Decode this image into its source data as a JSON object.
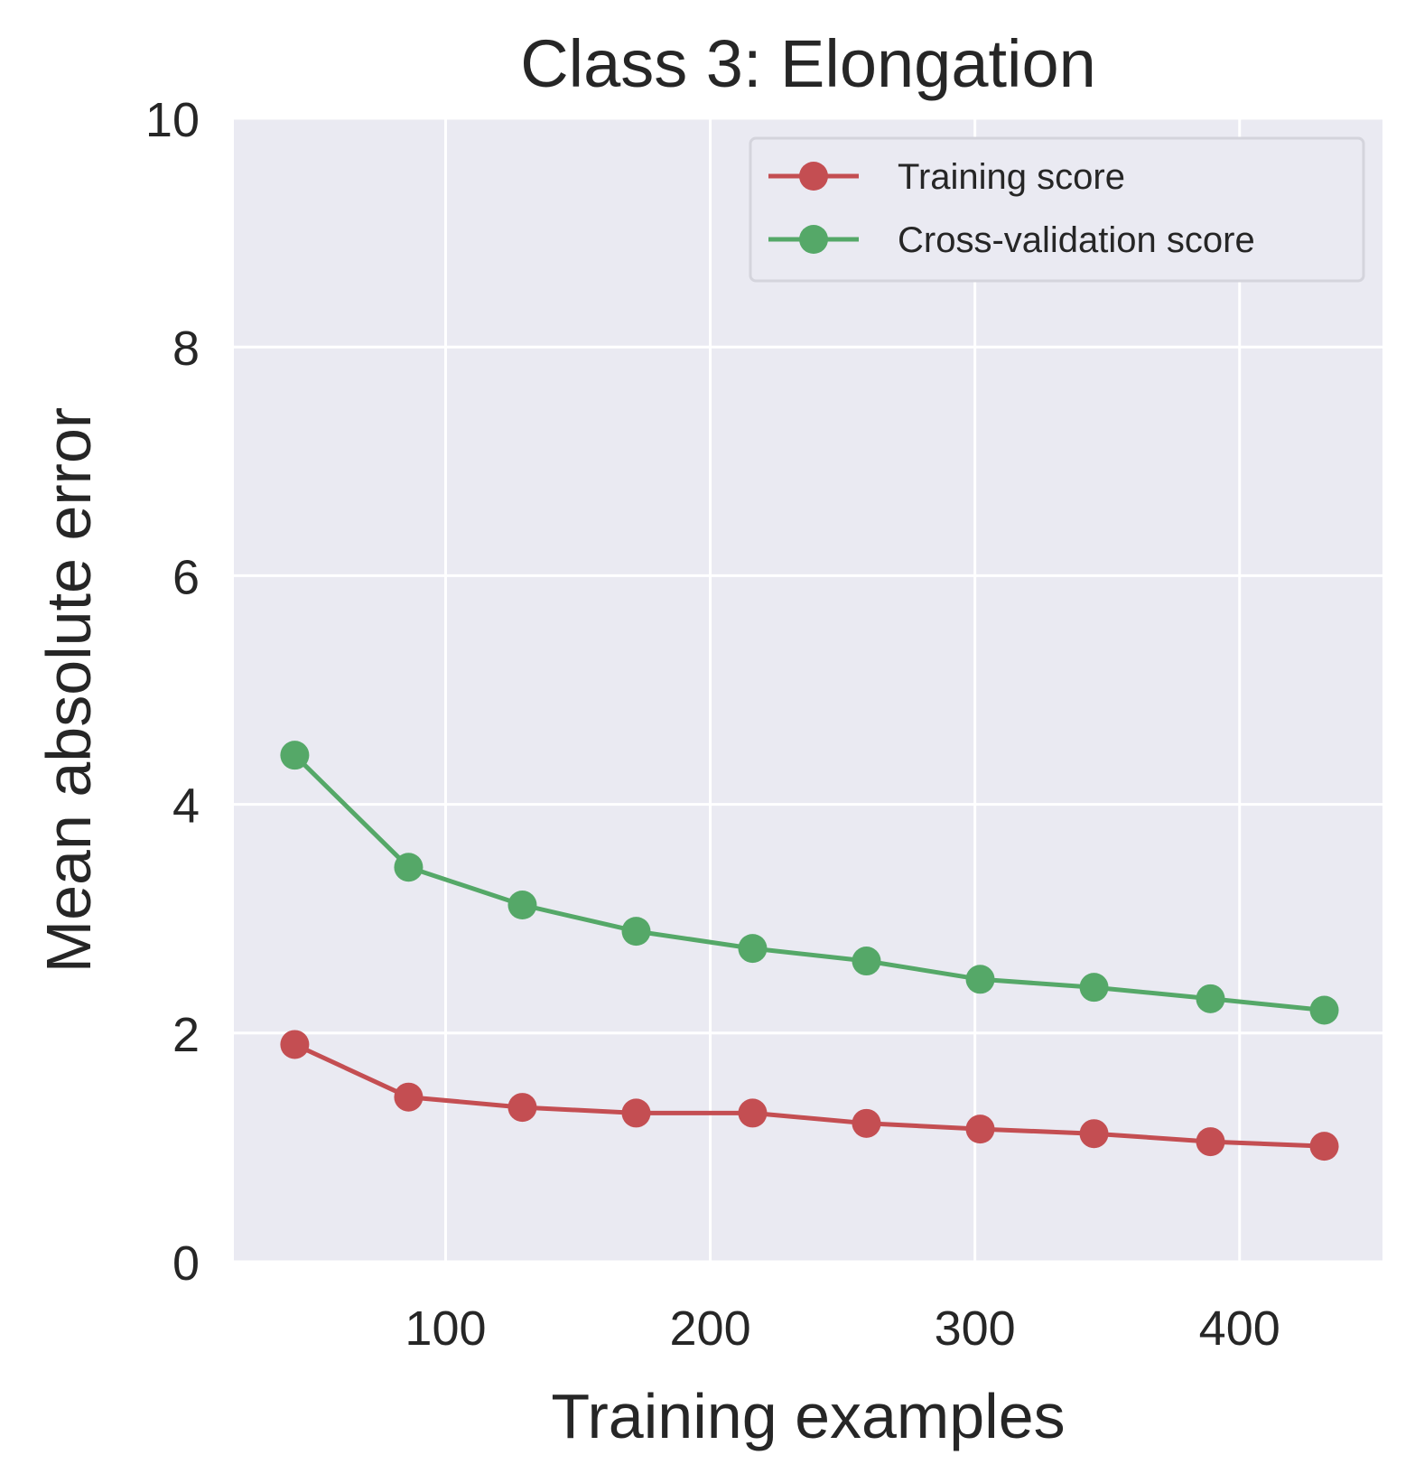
{
  "chart_data": {
    "type": "line",
    "title": "Class 3: Elongation",
    "xlabel": "Training examples",
    "ylabel": "Mean absolute error",
    "xlim": [
      20,
      454
    ],
    "ylim": [
      0,
      10
    ],
    "xticks": [
      100,
      200,
      300,
      400
    ],
    "yticks": [
      0,
      2,
      4,
      6,
      8,
      10
    ],
    "grid": true,
    "legend_position": "top-right",
    "x": [
      43,
      86,
      129,
      172,
      216,
      259,
      302,
      345,
      389,
      432
    ],
    "series": [
      {
        "name": "Training score",
        "color": "#c44e52",
        "marker": "circle",
        "values": [
          1.9,
          1.44,
          1.35,
          1.3,
          1.3,
          1.21,
          1.16,
          1.12,
          1.05,
          1.01
        ]
      },
      {
        "name": "Cross-validation score",
        "color": "#55a868",
        "marker": "circle",
        "values": [
          4.43,
          3.45,
          3.12,
          2.89,
          2.74,
          2.63,
          2.47,
          2.4,
          2.3,
          2.2
        ]
      }
    ],
    "colors": {
      "plot_background": "#eaeaf2",
      "grid": "#ffffff",
      "text": "#262626"
    }
  }
}
